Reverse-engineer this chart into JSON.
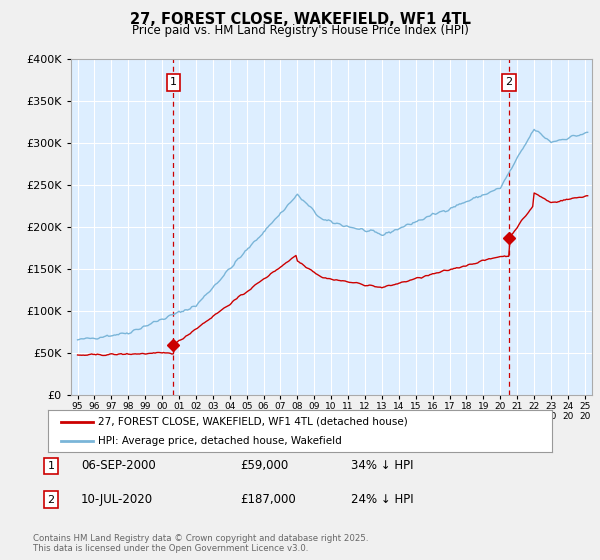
{
  "title": "27, FOREST CLOSE, WAKEFIELD, WF1 4TL",
  "subtitle": "Price paid vs. HM Land Registry's House Price Index (HPI)",
  "legend_line1": "27, FOREST CLOSE, WAKEFIELD, WF1 4TL (detached house)",
  "legend_line2": "HPI: Average price, detached house, Wakefield",
  "table_rows": [
    {
      "num": "1",
      "date": "06-SEP-2000",
      "price": "£59,000",
      "change": "34% ↓ HPI"
    },
    {
      "num": "2",
      "date": "10-JUL-2020",
      "price": "£187,000",
      "change": "24% ↓ HPI"
    }
  ],
  "footnote": "Contains HM Land Registry data © Crown copyright and database right 2025.\nThis data is licensed under the Open Government Licence v3.0.",
  "ylim": [
    0,
    400000
  ],
  "yticks": [
    0,
    50000,
    100000,
    150000,
    200000,
    250000,
    300000,
    350000,
    400000
  ],
  "hpi_color": "#7ab5d8",
  "sale_color": "#cc0000",
  "vline_color": "#cc0000",
  "background_color": "#f0f0f0",
  "plot_bg_color": "#ddeeff",
  "grid_color": "#ffffff",
  "marker1_x": 2000.67,
  "marker1_y": 59000,
  "marker2_x": 2020.52,
  "marker2_y": 187000,
  "vline1_x": 2000.67,
  "vline2_x": 2020.52,
  "xlim_min": 1994.6,
  "xlim_max": 2025.4
}
